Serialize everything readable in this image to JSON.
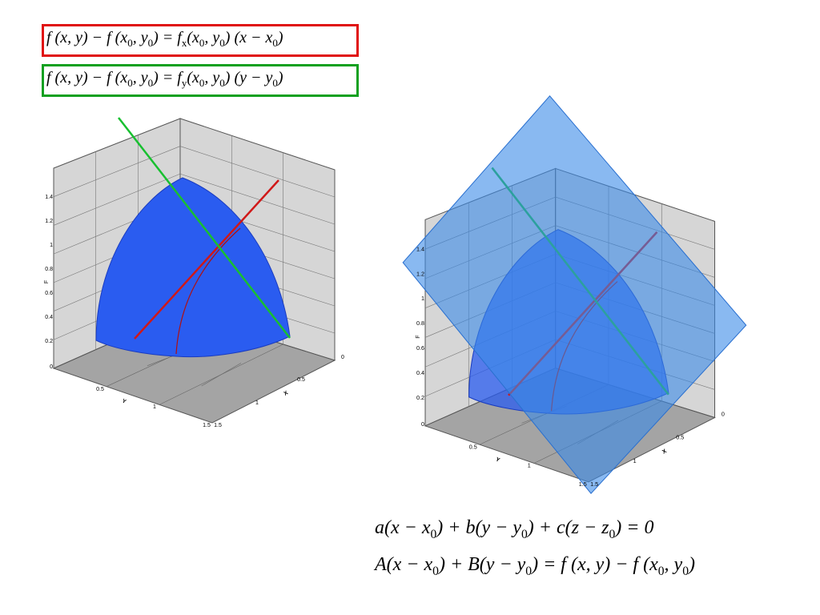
{
  "formulas": [
    [
      "f (x, y) − f (x",
      {
        "sub": "0"
      },
      ", y",
      {
        "sub": "0"
      },
      ") = f",
      {
        "sub": "x"
      },
      "(x",
      {
        "sub": "0"
      },
      ", y",
      {
        "sub": "0"
      },
      ") (x − x",
      {
        "sub": "0"
      },
      ")"
    ],
    [
      "f (x, y) − f (x",
      {
        "sub": "0"
      },
      ", y",
      {
        "sub": "0"
      },
      ") = f",
      {
        "sub": "y"
      },
      "(x",
      {
        "sub": "0"
      },
      ", y",
      {
        "sub": "0"
      },
      ") (y − y",
      {
        "sub": "0"
      },
      ")"
    ],
    [
      "a(x − x",
      {
        "sub": "0"
      },
      ") + b(y − y",
      {
        "sub": "0"
      },
      ") + c(z − z",
      {
        "sub": "0"
      },
      ") = 0"
    ],
    [
      "A(x − x",
      {
        "sub": "0"
      },
      ") + B(y − y",
      {
        "sub": "0"
      },
      ") = f (x, y) − f (x",
      {
        "sub": "0"
      },
      ", y",
      {
        "sub": "0"
      },
      ")"
    ]
  ],
  "axes": {
    "z_label": "F",
    "z_ticks": [
      "1.4",
      "1.2",
      "1",
      "0.8",
      "0.6",
      "0.4",
      "0.2",
      "0"
    ],
    "y_label": "Y",
    "y_ticks": [
      "0.5",
      "1",
      "1.5"
    ],
    "x_label": "X",
    "x_ticks": [
      "0",
      "0.5",
      "1",
      "1.5"
    ]
  }
}
